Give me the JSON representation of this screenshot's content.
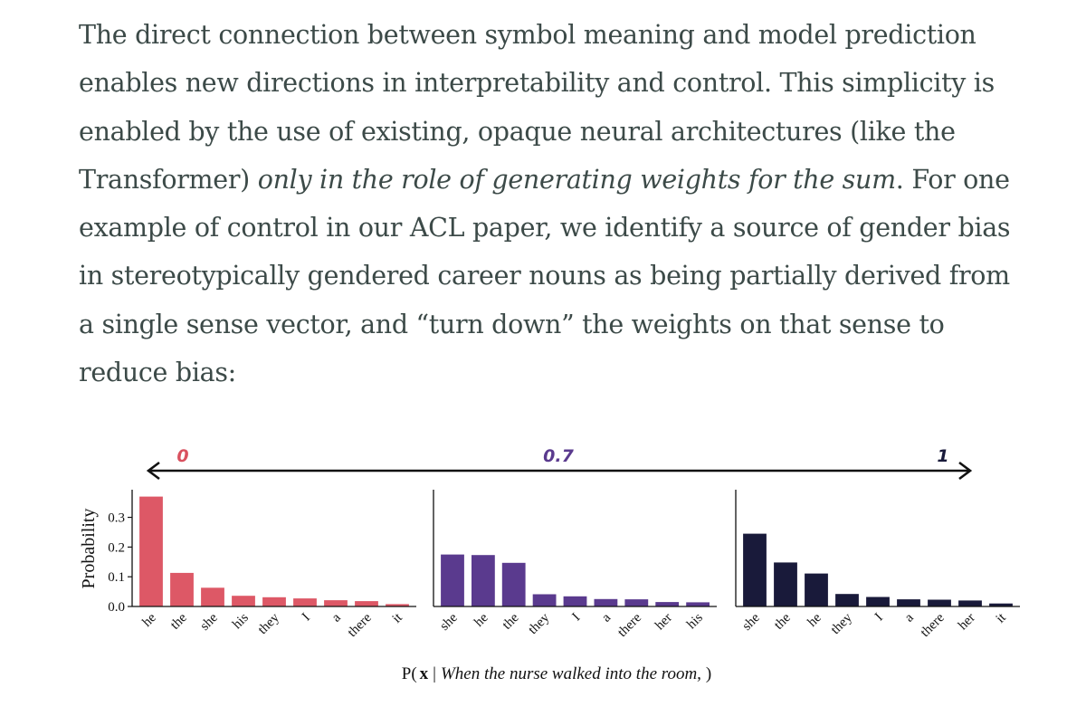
{
  "paragraph": {
    "segment_1": "The direct connection between symbol meaning and model prediction enables new directions in interpretability and control. This simplicity is enabled by the use of existing, opaque neural architectures (like the Transformer) ",
    "segment_emphasis": "only in the role of generating weights for the sum",
    "segment_2": ". For one example of control in our ACL paper, we identify a source of gender bias in stereotypically gendered career nouns as being partially derived from a single sense vector, and “turn down” the weights on that sense to reduce bias:"
  },
  "figure": {
    "scale_labels": [
      "0",
      "0.7",
      "1"
    ],
    "scale_colors": [
      "#d9515f",
      "#5a3a8e",
      "#191a3a"
    ],
    "caption": {
      "prefix": "P(",
      "variable": "x",
      "separator": "|",
      "condition": "When the nurse walked into the room,",
      "suffix": ")"
    }
  },
  "chart_data": [
    {
      "type": "bar",
      "categories": [
        "he",
        "the",
        "she",
        "his",
        "they",
        "I",
        "a",
        "there",
        "it"
      ],
      "values": [
        0.37,
        0.113,
        0.063,
        0.036,
        0.031,
        0.027,
        0.021,
        0.018,
        0.008
      ],
      "ylabel": "Probability",
      "ylim": [
        0,
        0.39
      ],
      "yticks": [
        "0.0",
        "0.1",
        "0.2",
        "0.3"
      ],
      "color": "#dd5866",
      "scale_value": "0"
    },
    {
      "type": "bar",
      "categories": [
        "she",
        "he",
        "the",
        "they",
        "I",
        "a",
        "there",
        "her",
        "his"
      ],
      "values": [
        0.175,
        0.173,
        0.147,
        0.041,
        0.034,
        0.025,
        0.024,
        0.015,
        0.014
      ],
      "ylabel": "",
      "ylim": [
        0,
        0.39
      ],
      "color": "#5a3a8e",
      "scale_value": "0.7"
    },
    {
      "type": "bar",
      "categories": [
        "she",
        "the",
        "he",
        "they",
        "I",
        "a",
        "there",
        "her",
        "it"
      ],
      "values": [
        0.245,
        0.148,
        0.111,
        0.042,
        0.032,
        0.024,
        0.023,
        0.02,
        0.01
      ],
      "ylabel": "",
      "ylim": [
        0,
        0.39
      ],
      "color": "#191a3a",
      "scale_value": "1"
    }
  ]
}
